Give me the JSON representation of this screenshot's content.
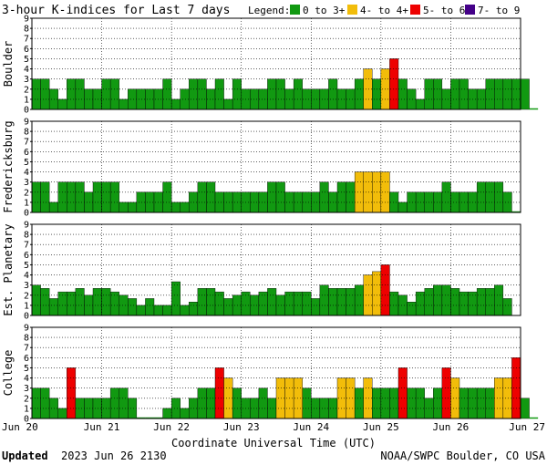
{
  "title": "3-hour K-indices for Last 7 days",
  "legend": {
    "label": "Legend:",
    "items": [
      {
        "label": "0 to 3+",
        "color": "#119911"
      },
      {
        "label": "4- to 4+",
        "color": "#f2bd0a"
      },
      {
        "label": "5- to 6+",
        "color": "#ee0000"
      },
      {
        "label": "7- to 9",
        "color": "#440088"
      }
    ]
  },
  "footer": {
    "updated_label": "Updated",
    "updated_value": "2023 Jun 26 2130",
    "source": "NOAA/SWPC Boulder, CO USA"
  },
  "chart_data": {
    "type": "bar",
    "xlabel": "Coordinate Universal Time (UTC)",
    "x_ticks": [
      "Jun 20",
      "Jun 21",
      "Jun 22",
      "Jun 23",
      "Jun 24",
      "Jun 25",
      "Jun 26",
      "Jun 27"
    ],
    "ylim": [
      0,
      9
    ],
    "y_ticks": [
      "0",
      "1",
      "2",
      "3",
      "4",
      "5",
      "6",
      "7",
      "8",
      "9"
    ],
    "bins_per_day": 8,
    "color_thresholds": [
      {
        "min": 0,
        "max": 3.34,
        "color": "#119911"
      },
      {
        "min": 3.67,
        "max": 4.34,
        "color": "#f2bd0a"
      },
      {
        "min": 4.67,
        "max": 6.34,
        "color": "#ee0000"
      },
      {
        "min": 6.67,
        "max": 9,
        "color": "#440088"
      }
    ],
    "panels": [
      {
        "name": "Boulder",
        "values": [
          3,
          3,
          2,
          1,
          3,
          3,
          2,
          2,
          3,
          3,
          1,
          2,
          2,
          2,
          2,
          3,
          1,
          2,
          3,
          3,
          2,
          3,
          1,
          3,
          2,
          2,
          2,
          3,
          3,
          2,
          3,
          2,
          2,
          2,
          3,
          2,
          2,
          3,
          4,
          3,
          4,
          5,
          3,
          2,
          1,
          3,
          3,
          2,
          3,
          3,
          2,
          2,
          3,
          3,
          3,
          3,
          3,
          0
        ]
      },
      {
        "name": "Fredericksburg",
        "values": [
          3,
          3,
          1,
          3,
          3,
          3,
          2,
          3,
          3,
          3,
          1,
          1,
          2,
          2,
          2,
          3,
          1,
          1,
          2,
          3,
          3,
          2,
          2,
          2,
          2,
          2,
          2,
          3,
          3,
          2,
          2,
          2,
          2,
          3,
          2,
          3,
          3,
          4,
          4,
          4,
          4,
          2,
          1,
          2,
          2,
          2,
          2,
          3,
          2,
          2,
          2,
          3,
          3,
          3,
          2,
          0
        ]
      },
      {
        "name": "Est. Planetary",
        "values": [
          3,
          2.67,
          1.67,
          2.33,
          2.33,
          2.67,
          2,
          2.67,
          2.67,
          2.33,
          2,
          1.67,
          1,
          1.67,
          1,
          1,
          3.33,
          1,
          1.33,
          2.67,
          2.67,
          2.33,
          1.67,
          2,
          2.33,
          2,
          2.33,
          2.67,
          2,
          2.33,
          2.33,
          2.33,
          1.67,
          3,
          2.67,
          2.67,
          2.67,
          3,
          4,
          4.33,
          5,
          2.33,
          2,
          1.33,
          2.33,
          2.67,
          3,
          3,
          2.67,
          2.33,
          2.33,
          2.67,
          2.67,
          3,
          1.67
        ]
      },
      {
        "name": "College",
        "values": [
          3,
          3,
          2,
          1,
          5,
          2,
          2,
          2,
          2,
          3,
          3,
          2,
          0,
          0,
          0,
          1,
          2,
          1,
          2,
          3,
          3,
          5,
          4,
          3,
          2,
          2,
          3,
          2,
          4,
          4,
          4,
          3,
          2,
          2,
          2,
          4,
          4,
          3,
          4,
          3,
          3,
          3,
          5,
          3,
          3,
          2,
          3,
          5,
          4,
          3,
          3,
          3,
          3,
          4,
          4,
          6,
          2,
          0
        ]
      }
    ]
  }
}
